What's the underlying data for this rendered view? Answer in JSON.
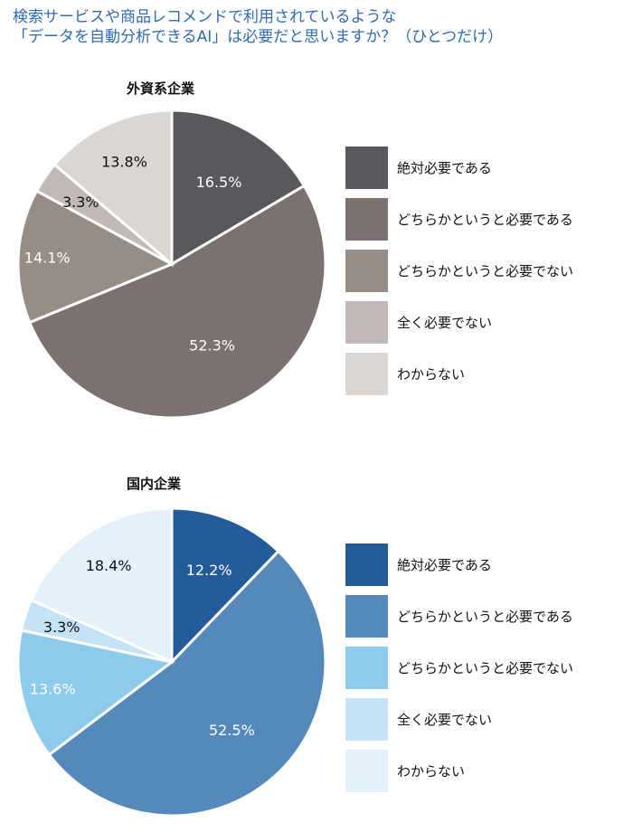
{
  "question": {
    "line1": "検索サービスや商品レコメンドで利用されているような",
    "line2": "「データを自動分析できるAI」は必要だと思いますか？（ひとつだけ）"
  },
  "chart_data": [
    {
      "type": "pie",
      "title": "外資系企業",
      "categories": [
        "絶対必要である",
        "どちらかというと必要である",
        "どちらかというと必要でない",
        "全く必要でない",
        "わからない"
      ],
      "values": [
        16.5,
        52.3,
        14.1,
        3.3,
        13.8
      ],
      "labels": [
        "16.5%",
        "52.3%",
        "14.1%",
        "3.3%",
        "13.8%"
      ],
      "colors": [
        "#5a585c",
        "#7b7270",
        "#968d87",
        "#c1b9b7",
        "#dcd6d2"
      ],
      "label_colors": [
        "#ffffff",
        "#ffffff",
        "#ffffff",
        "#111111",
        "#111111"
      ],
      "legend_position": "right"
    },
    {
      "type": "pie",
      "title": "国内企業",
      "categories": [
        "絶対必要である",
        "どちらかというと必要である",
        "どちらかというと必要でない",
        "全く必要でない",
        "わからない"
      ],
      "values": [
        12.2,
        52.5,
        13.6,
        3.3,
        18.4
      ],
      "labels": [
        "12.2%",
        "52.5%",
        "13.6%",
        "3.3%",
        "18.4%"
      ],
      "colors": [
        "#245b9a",
        "#5589bb",
        "#8ccbec",
        "#c4e3f6",
        "#e2f1fa"
      ],
      "label_colors": [
        "#ffffff",
        "#ffffff",
        "#ffffff",
        "#111111",
        "#111111"
      ],
      "legend_position": "right"
    }
  ]
}
